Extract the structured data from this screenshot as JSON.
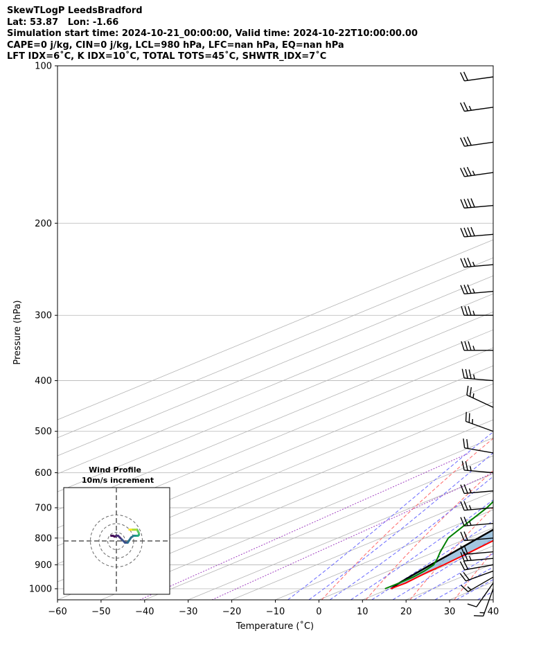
{
  "header": {
    "title": "SkewTLogP LeedsBradford",
    "location": "Lat: 53.87   Lon: -1.66",
    "times": "Simulation start time: 2024-10-21_00:00:00, Valid time: 2024-10-22T10:00:00.00",
    "params1": "CAPE=0 j/kg, CIN=0 j/kg, LCL=980 hPa, LFC=nan hPa, EQ=nan hPa",
    "params2": "LFT IDX=6˚C, K IDX=10˚C, TOTAL TOTS=45˚C, SHWTR_IDX=7˚C"
  },
  "colors": {
    "temperature": "#ff0000",
    "dewpoint": "#008000",
    "parcel": "#000000",
    "shading": "#7fb0d4",
    "dry_adiabat": "#ff6666",
    "moist_adiabat": "#6666ff",
    "mixing_ratio": "#a040c0",
    "isotherm": "#b4b4b4",
    "isobar": "#b4b4b4"
  },
  "chart_data": {
    "type": "skew-t log-p",
    "xlabel": "Temperature (˚C)",
    "ylabel": "Pressure (hPa)",
    "xlim": [
      -60,
      40
    ],
    "ylim": [
      1050,
      100
    ],
    "y_scale": "log",
    "grid": true,
    "x_ticks": [
      "−60",
      "−50",
      "−40",
      "−30",
      "−20",
      "−10",
      "0",
      "10",
      "20",
      "30",
      "40"
    ],
    "y_ticks": [
      "100",
      "200",
      "300",
      "400",
      "500",
      "600",
      "700",
      "800",
      "900",
      "1000"
    ],
    "isobars": [
      100,
      200,
      300,
      400,
      500,
      600,
      700,
      800,
      900,
      1000
    ],
    "dry_adiabats_K": [
      270,
      280,
      290,
      300,
      310,
      320,
      330,
      340,
      350,
      360,
      370,
      380,
      390,
      400,
      410,
      420,
      430,
      440,
      450
    ],
    "moist_adiabats_C": [
      -10,
      -5,
      0,
      5,
      10,
      15,
      20,
      25,
      30,
      35
    ],
    "mixing_ratios_gkg": [
      0.1,
      0.5
    ],
    "series": [
      {
        "name": "Temperature",
        "points": [
          [
            1000,
            10.3
          ],
          [
            975,
            10.6
          ],
          [
            950,
            10.0
          ],
          [
            925,
            9.5
          ],
          [
            900,
            9.2
          ],
          [
            850,
            8.2
          ],
          [
            800,
            6.9
          ],
          [
            750,
            5.4
          ],
          [
            700,
            3.7
          ],
          [
            650,
            1.8
          ],
          [
            600,
            0.2
          ],
          [
            550,
            -1.5
          ],
          [
            500,
            -3.5
          ],
          [
            450,
            -5.8
          ],
          [
            400,
            -9.0
          ],
          [
            350,
            -13.6
          ],
          [
            300,
            -19.0
          ],
          [
            275,
            -22.0
          ],
          [
            260,
            -24.6
          ],
          [
            250,
            -26.3
          ],
          [
            230,
            -28.0
          ],
          [
            200,
            -31.0
          ],
          [
            180,
            -34.5
          ],
          [
            160,
            -38.9
          ],
          [
            140,
            -43.4
          ],
          [
            120,
            -48.6
          ],
          [
            100,
            -54.9
          ]
        ]
      },
      {
        "name": "Dew point",
        "points": [
          [
            1000,
            9.0
          ],
          [
            975,
            9.1
          ],
          [
            950,
            9.0
          ],
          [
            925,
            8.2
          ],
          [
            900,
            6.9
          ],
          [
            875,
            4.2
          ],
          [
            850,
            1.2
          ],
          [
            800,
            -4.6
          ],
          [
            750,
            -8.5
          ],
          [
            700,
            -12.6
          ],
          [
            650,
            -18.0
          ],
          [
            600,
            -22.7
          ],
          [
            550,
            -19.6
          ],
          [
            500,
            -15.4
          ],
          [
            470,
            -15.2
          ],
          [
            450,
            -16.8
          ],
          [
            400,
            -25.0
          ],
          [
            380,
            -28.0
          ],
          [
            350,
            -31.3
          ],
          [
            300,
            -39.2
          ],
          [
            270,
            -45.3
          ],
          [
            240,
            -51.5
          ],
          [
            220,
            -54.3
          ],
          [
            200,
            -57.6
          ],
          [
            185,
            -61.8
          ],
          [
            175,
            -62.5
          ],
          [
            160,
            -64.6
          ],
          [
            145,
            -67.6
          ],
          [
            130,
            -71.6
          ],
          [
            115,
            -75.0
          ],
          [
            100,
            -79.0
          ]
        ]
      },
      {
        "name": "Parcel",
        "points": [
          [
            1000,
            10.5
          ],
          [
            980,
            9.3
          ],
          [
            950,
            8.1
          ],
          [
            900,
            6.2
          ],
          [
            850,
            4.4
          ],
          [
            800,
            2.3
          ],
          [
            750,
            0.1
          ],
          [
            700,
            -2.3
          ],
          [
            650,
            -5.1
          ],
          [
            600,
            -8.3
          ],
          [
            550,
            -11.9
          ],
          [
            500,
            -16.1
          ],
          [
            450,
            -20.9
          ],
          [
            400,
            -26.4
          ],
          [
            350,
            -32.6
          ],
          [
            300,
            -39.6
          ],
          [
            250,
            -47.7
          ],
          [
            200,
            -57.1
          ],
          [
            150,
            -68.1
          ],
          [
            100,
            -81.8
          ]
        ]
      }
    ],
    "wind_barbs": {
      "pressures": [
        1000,
        975,
        950,
        925,
        900,
        875,
        850,
        800,
        750,
        700,
        650,
        600,
        550,
        500,
        450,
        400,
        350,
        300,
        270,
        240,
        210,
        185,
        160,
        140,
        120,
        105
      ],
      "speed_kt": [
        15,
        10,
        15,
        20,
        20,
        25,
        20,
        20,
        25,
        25,
        25,
        25,
        20,
        25,
        25,
        35,
        35,
        35,
        35,
        35,
        40,
        40,
        35,
        30,
        25,
        20
      ],
      "direction_deg": [
        200,
        215,
        240,
        250,
        260,
        265,
        265,
        265,
        265,
        265,
        265,
        275,
        280,
        290,
        295,
        275,
        270,
        270,
        265,
        265,
        265,
        265,
        262,
        262,
        262,
        262
      ]
    },
    "hodograph": {
      "title": "Wind Profile",
      "subtitle": "10m/s increment",
      "rings_ms": [
        10,
        20,
        30
      ],
      "points": [
        [
          -6,
          6
        ],
        [
          -4,
          6
        ],
        [
          -2,
          5
        ],
        [
          0,
          6
        ],
        [
          2,
          6
        ],
        [
          4,
          4
        ],
        [
          6,
          2
        ],
        [
          8,
          0
        ],
        [
          10,
          -2
        ],
        [
          13,
          -2
        ],
        [
          15,
          1
        ],
        [
          17,
          4
        ],
        [
          20,
          6
        ],
        [
          22,
          6
        ],
        [
          24,
          6
        ],
        [
          25,
          6
        ],
        [
          26,
          7
        ],
        [
          26,
          9
        ],
        [
          25,
          11
        ],
        [
          24,
          13
        ],
        [
          23,
          13
        ],
        [
          21,
          13
        ],
        [
          19,
          13
        ],
        [
          17,
          13
        ],
        [
          16,
          13
        ],
        [
          15,
          13
        ]
      ]
    }
  }
}
